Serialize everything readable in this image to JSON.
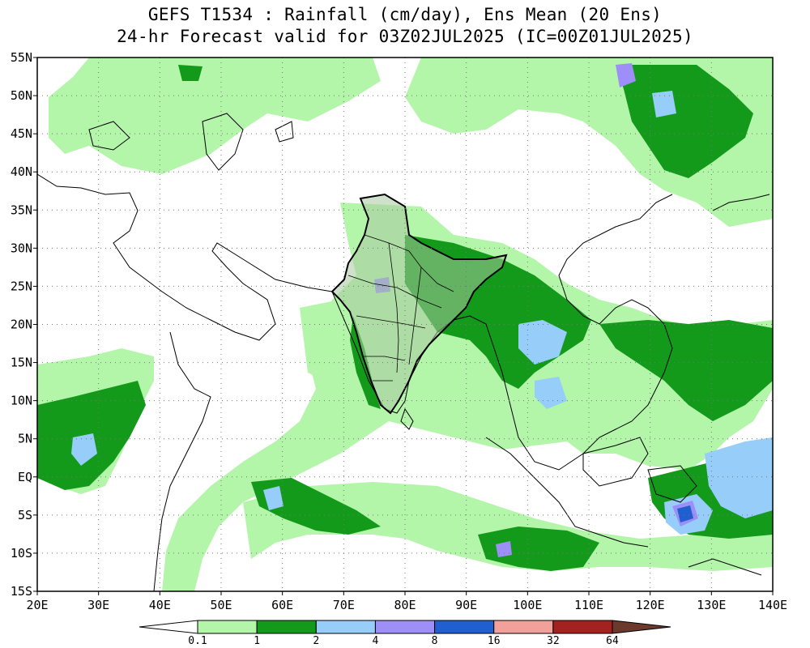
{
  "title": {
    "line1": "GEFS T1534 : Rainfall (cm/day), Ens Mean (20 Ens)",
    "line2": "24-hr Forecast valid for 03Z02JUL2025 (IC=00Z01JUL2025)"
  },
  "map": {
    "lon_range": [
      20,
      140
    ],
    "lat_range": [
      -15,
      55
    ],
    "lon_ticks": [
      "20E",
      "30E",
      "40E",
      "50E",
      "60E",
      "70E",
      "80E",
      "90E",
      "100E",
      "110E",
      "120E",
      "130E",
      "140E"
    ],
    "lat_ticks": [
      "55N",
      "50N",
      "45N",
      "40N",
      "35N",
      "30N",
      "25N",
      "20N",
      "15N",
      "10N",
      "5N",
      "EQ",
      "5S",
      "10S",
      "15S"
    ],
    "grid": true
  },
  "colorbar": {
    "colors": [
      "#ffffff",
      "#b3f5a9",
      "#139a1a",
      "#96cdf9",
      "#9d8ff7",
      "#1f5fd0",
      "#f2a19a",
      "#a3221f",
      "#6b3a2c"
    ],
    "labels": [
      "0.1",
      "1",
      "2",
      "4",
      "8",
      "16",
      "32",
      "64"
    ]
  }
}
